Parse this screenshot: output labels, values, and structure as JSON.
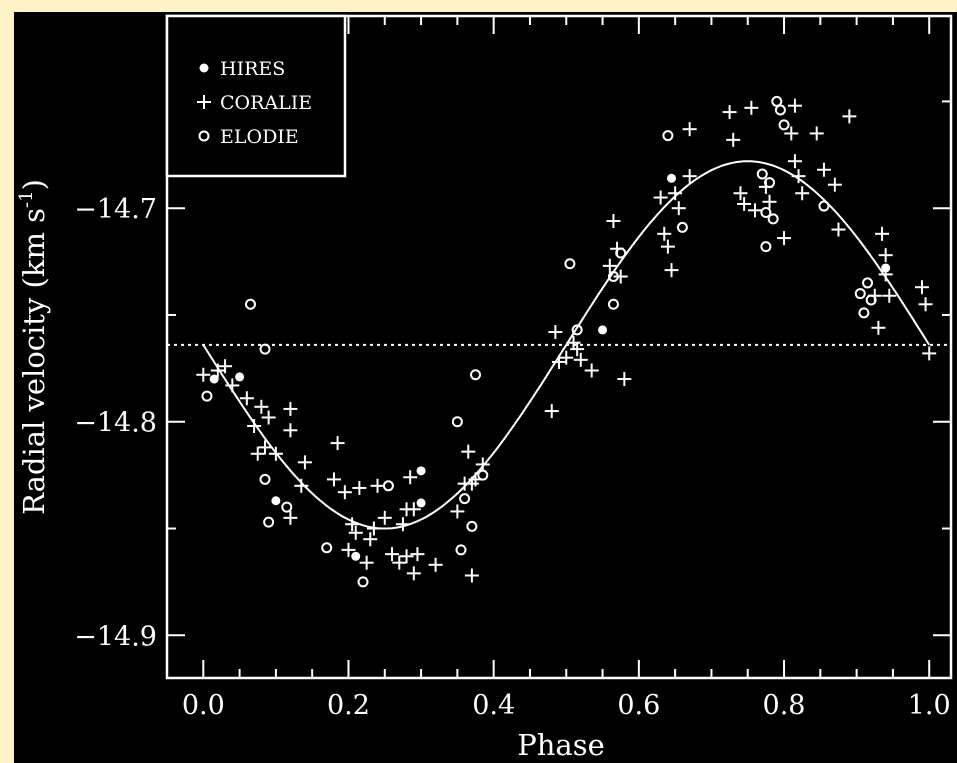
{
  "chart_data": {
    "type": "scatter",
    "xlabel": "Phase",
    "ylabel": "Radial velocity (km s",
    "ylabel_superscript": "-1",
    "ylabel_suffix": ")",
    "xlim": [
      -0.05,
      1.03
    ],
    "ylim": [
      -14.92,
      -14.61
    ],
    "x_ticks": [
      0.0,
      0.2,
      0.4,
      0.6,
      0.8,
      1.0
    ],
    "x_tick_labels": [
      "0.0",
      "0.2",
      "0.4",
      "0.6",
      "0.8",
      "1.0"
    ],
    "y_ticks": [
      -14.7,
      -14.8,
      -14.9
    ],
    "y_tick_labels": [
      "−14.7",
      "−14.8",
      "−14.9"
    ],
    "reference_line": {
      "y": -14.764,
      "style": "dotted"
    },
    "model_curve": {
      "type": "sine",
      "mean": -14.764,
      "amplitude": 0.086,
      "phase_of_minimum": 0.25
    },
    "legend_position": "top-left",
    "colors": {
      "background": "#000000",
      "foreground": "#ffffff",
      "page": "#fdf2c8"
    },
    "series": [
      {
        "name": "HIRES",
        "marker": "filled-circle",
        "points": [
          [
            0.015,
            -14.78
          ],
          [
            0.05,
            -14.779
          ],
          [
            0.1,
            -14.837
          ],
          [
            0.21,
            -14.863
          ],
          [
            0.3,
            -14.823
          ],
          [
            0.3,
            -14.838
          ],
          [
            0.55,
            -14.757
          ],
          [
            0.645,
            -14.686
          ],
          [
            0.94,
            -14.728
          ]
        ]
      },
      {
        "name": "CORALIE",
        "marker": "plus",
        "points": [
          [
            0.0,
            -14.778
          ],
          [
            0.02,
            -14.776
          ],
          [
            0.03,
            -14.774
          ],
          [
            0.04,
            -14.783
          ],
          [
            0.06,
            -14.789
          ],
          [
            0.07,
            -14.802
          ],
          [
            0.075,
            -14.815
          ],
          [
            0.08,
            -14.793
          ],
          [
            0.085,
            -14.812
          ],
          [
            0.09,
            -14.798
          ],
          [
            0.1,
            -14.815
          ],
          [
            0.12,
            -14.794
          ],
          [
            0.12,
            -14.804
          ],
          [
            0.12,
            -14.845
          ],
          [
            0.135,
            -14.83
          ],
          [
            0.14,
            -14.819
          ],
          [
            0.18,
            -14.827
          ],
          [
            0.185,
            -14.81
          ],
          [
            0.195,
            -14.833
          ],
          [
            0.2,
            -14.86
          ],
          [
            0.205,
            -14.848
          ],
          [
            0.21,
            -14.852
          ],
          [
            0.215,
            -14.831
          ],
          [
            0.225,
            -14.866
          ],
          [
            0.23,
            -14.855
          ],
          [
            0.235,
            -14.85
          ],
          [
            0.24,
            -14.83
          ],
          [
            0.25,
            -14.845
          ],
          [
            0.26,
            -14.862
          ],
          [
            0.27,
            -14.866
          ],
          [
            0.275,
            -14.848
          ],
          [
            0.28,
            -14.863
          ],
          [
            0.28,
            -14.841
          ],
          [
            0.285,
            -14.826
          ],
          [
            0.29,
            -14.871
          ],
          [
            0.29,
            -14.841
          ],
          [
            0.295,
            -14.862
          ],
          [
            0.32,
            -14.867
          ],
          [
            0.35,
            -14.842
          ],
          [
            0.36,
            -14.829
          ],
          [
            0.365,
            -14.814
          ],
          [
            0.37,
            -14.829
          ],
          [
            0.37,
            -14.872
          ],
          [
            0.375,
            -14.827
          ],
          [
            0.385,
            -14.82
          ],
          [
            0.48,
            -14.795
          ],
          [
            0.485,
            -14.758
          ],
          [
            0.49,
            -14.772
          ],
          [
            0.5,
            -14.77
          ],
          [
            0.51,
            -14.763
          ],
          [
            0.515,
            -14.766
          ],
          [
            0.52,
            -14.771
          ],
          [
            0.535,
            -14.776
          ],
          [
            0.56,
            -14.727
          ],
          [
            0.565,
            -14.706
          ],
          [
            0.57,
            -14.719
          ],
          [
            0.575,
            -14.732
          ],
          [
            0.58,
            -14.78
          ],
          [
            0.63,
            -14.695
          ],
          [
            0.635,
            -14.712
          ],
          [
            0.64,
            -14.718
          ],
          [
            0.645,
            -14.729
          ],
          [
            0.65,
            -14.693
          ],
          [
            0.655,
            -14.7
          ],
          [
            0.67,
            -14.663
          ],
          [
            0.67,
            -14.685
          ],
          [
            0.725,
            -14.655
          ],
          [
            0.73,
            -14.668
          ],
          [
            0.74,
            -14.693
          ],
          [
            0.745,
            -14.698
          ],
          [
            0.755,
            -14.653
          ],
          [
            0.76,
            -14.701
          ],
          [
            0.775,
            -14.69
          ],
          [
            0.78,
            -14.697
          ],
          [
            0.8,
            -14.714
          ],
          [
            0.81,
            -14.665
          ],
          [
            0.815,
            -14.678
          ],
          [
            0.815,
            -14.652
          ],
          [
            0.82,
            -14.685
          ],
          [
            0.825,
            -14.693
          ],
          [
            0.845,
            -14.665
          ],
          [
            0.855,
            -14.682
          ],
          [
            0.87,
            -14.689
          ],
          [
            0.875,
            -14.71
          ],
          [
            0.89,
            -14.657
          ],
          [
            0.925,
            -14.741
          ],
          [
            0.93,
            -14.756
          ],
          [
            0.935,
            -14.712
          ],
          [
            0.94,
            -14.722
          ],
          [
            0.94,
            -14.731
          ],
          [
            0.945,
            -14.741
          ],
          [
            0.99,
            -14.737
          ],
          [
            0.995,
            -14.745
          ],
          [
            1.0,
            -14.768
          ]
        ]
      },
      {
        "name": "ELODIE",
        "marker": "open-circle",
        "points": [
          [
            0.005,
            -14.788
          ],
          [
            0.065,
            -14.745
          ],
          [
            0.085,
            -14.766
          ],
          [
            0.085,
            -14.827
          ],
          [
            0.09,
            -14.847
          ],
          [
            0.115,
            -14.84
          ],
          [
            0.17,
            -14.859
          ],
          [
            0.22,
            -14.875
          ],
          [
            0.255,
            -14.83
          ],
          [
            0.35,
            -14.8
          ],
          [
            0.355,
            -14.86
          ],
          [
            0.36,
            -14.836
          ],
          [
            0.37,
            -14.849
          ],
          [
            0.375,
            -14.778
          ],
          [
            0.385,
            -14.825
          ],
          [
            0.505,
            -14.726
          ],
          [
            0.515,
            -14.757
          ],
          [
            0.565,
            -14.745
          ],
          [
            0.565,
            -14.732
          ],
          [
            0.575,
            -14.721
          ],
          [
            0.64,
            -14.666
          ],
          [
            0.66,
            -14.709
          ],
          [
            0.77,
            -14.684
          ],
          [
            0.775,
            -14.702
          ],
          [
            0.775,
            -14.718
          ],
          [
            0.78,
            -14.688
          ],
          [
            0.785,
            -14.705
          ],
          [
            0.79,
            -14.65
          ],
          [
            0.795,
            -14.654
          ],
          [
            0.8,
            -14.661
          ],
          [
            0.855,
            -14.699
          ],
          [
            0.905,
            -14.74
          ],
          [
            0.91,
            -14.749
          ],
          [
            0.915,
            -14.735
          ],
          [
            0.92,
            -14.743
          ]
        ]
      }
    ]
  }
}
